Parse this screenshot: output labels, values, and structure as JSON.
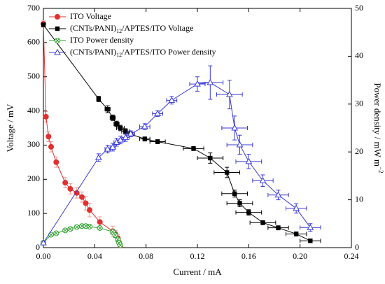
{
  "chart_data": {
    "type": "line",
    "xlabel": "Current / mA",
    "ylabel": "Voltage / mV",
    "y2label": "Power density / mW m−2",
    "xlim": [
      0,
      0.24
    ],
    "xticks": [
      {
        "value": 0,
        "label": "0.00"
      },
      {
        "value": 0.04,
        "label": "0.04"
      },
      {
        "value": 0.08,
        "label": "0.08"
      },
      {
        "value": 0.12,
        "label": "0.12"
      },
      {
        "value": 0.16,
        "label": "0.16"
      },
      {
        "value": 0.2,
        "label": "0.20"
      },
      {
        "value": 0.24,
        "label": "0.24"
      }
    ],
    "ylim": [
      0,
      700
    ],
    "yticks": [
      0,
      100,
      200,
      300,
      400,
      500,
      600,
      700
    ],
    "y2lim": [
      0,
      50
    ],
    "y2ticks": [
      0,
      10,
      20,
      30,
      40,
      50
    ],
    "legend": "upper left",
    "series": [
      {
        "name": "ITO Voltage",
        "color": "#e03030",
        "error_color": "#f29a9a",
        "marker": "circle",
        "x": [
          0,
          0.002,
          0.004,
          0.006,
          0.01,
          0.017,
          0.021,
          0.026,
          0.03,
          0.033,
          0.036,
          0.044,
          0.054,
          0.056,
          0.058,
          0.059,
          0.06
        ],
        "values": [
          655,
          383,
          325,
          295,
          250,
          190,
          172,
          160,
          148,
          130,
          110,
          75,
          48,
          40,
          28,
          15,
          6
        ],
        "y_errors": [
          10,
          15,
          15,
          15,
          15,
          15,
          15,
          15,
          15,
          20,
          20,
          15,
          15,
          10,
          10,
          8,
          5
        ]
      },
      {
        "name": "(CNTs/PANI)12/APTES/ITO Voltage",
        "color": "#000000",
        "error_color": "#000000",
        "marker": "square",
        "x": [
          0,
          0.043,
          0.05,
          0.054,
          0.057,
          0.06,
          0.064,
          0.068,
          0.079,
          0.089,
          0.117,
          0.13,
          0.143,
          0.149,
          0.153,
          0.16,
          0.171,
          0.183,
          0.197,
          0.208
        ],
        "values": [
          652,
          435,
          405,
          380,
          362,
          350,
          340,
          332,
          318,
          310,
          290,
          262,
          220,
          158,
          130,
          103,
          73,
          58,
          40,
          20
        ],
        "y_errors": [
          5,
          8,
          10,
          8,
          8,
          8,
          8,
          6,
          6,
          6,
          6,
          15,
          15,
          10,
          10,
          8,
          6,
          6,
          6,
          4
        ],
        "x_errors": [
          0,
          0,
          0.002,
          0.002,
          0.002,
          0.003,
          0.003,
          0.003,
          0.004,
          0.006,
          0.008,
          0.01,
          0.01,
          0.01,
          0.01,
          0.01,
          0.01,
          0.008,
          0.008,
          0.008
        ]
      },
      {
        "name": "ITO Power density",
        "color": "#2ca02c",
        "error_color": "#2ca02c",
        "marker": "xcircle",
        "axis": "y2",
        "x": [
          0,
          0.006,
          0.01,
          0.017,
          0.021,
          0.026,
          0.03,
          0.033,
          0.036,
          0.044,
          0.054,
          0.056,
          0.058,
          0.059,
          0.06
        ],
        "values": [
          1.0,
          2.7,
          3.0,
          3.6,
          3.9,
          4.3,
          4.5,
          4.5,
          4.4,
          4.1,
          3.3,
          2.6,
          1.7,
          1.0,
          0.5
        ],
        "y_errors": [
          0.3,
          0.3,
          0.3,
          0.3,
          0.3,
          0.3,
          0.3,
          0.3,
          0.3,
          0.3,
          0.5,
          0.5,
          0.4,
          0.3,
          0.3
        ]
      },
      {
        "name": "(CNTs/PANI)12/APTES/ITO Power density",
        "color": "#3a3ad8",
        "error_color": "#3a3ad8",
        "marker": "triangle",
        "axis": "y2",
        "x": [
          0,
          0.043,
          0.05,
          0.054,
          0.057,
          0.06,
          0.064,
          0.068,
          0.079,
          0.089,
          0.1,
          0.12,
          0.13,
          0.145,
          0.149,
          0.153,
          0.16,
          0.171,
          0.183,
          0.197,
          0.208
        ],
        "values": [
          1.0,
          18.8,
          20.6,
          21.0,
          22.0,
          22.5,
          23.0,
          23.8,
          25.3,
          28.0,
          30.8,
          34.2,
          34.5,
          32.0,
          25.0,
          21.5,
          18.0,
          14.0,
          11.0,
          8.2,
          4.2
        ],
        "y_errors": [
          0.3,
          0.8,
          0.8,
          0.8,
          0.8,
          0.8,
          0.8,
          0.6,
          0.6,
          0.6,
          0.8,
          1.5,
          3.5,
          3.0,
          2.5,
          2.0,
          1.5,
          1.2,
          1.0,
          1.0,
          0.8
        ],
        "x_errors": [
          0,
          0,
          0.002,
          0.002,
          0.002,
          0.003,
          0.003,
          0.003,
          0.004,
          0.004,
          0.004,
          0.006,
          0.01,
          0.01,
          0.01,
          0.01,
          0.01,
          0.008,
          0.008,
          0.008,
          0.008
        ]
      }
    ]
  }
}
